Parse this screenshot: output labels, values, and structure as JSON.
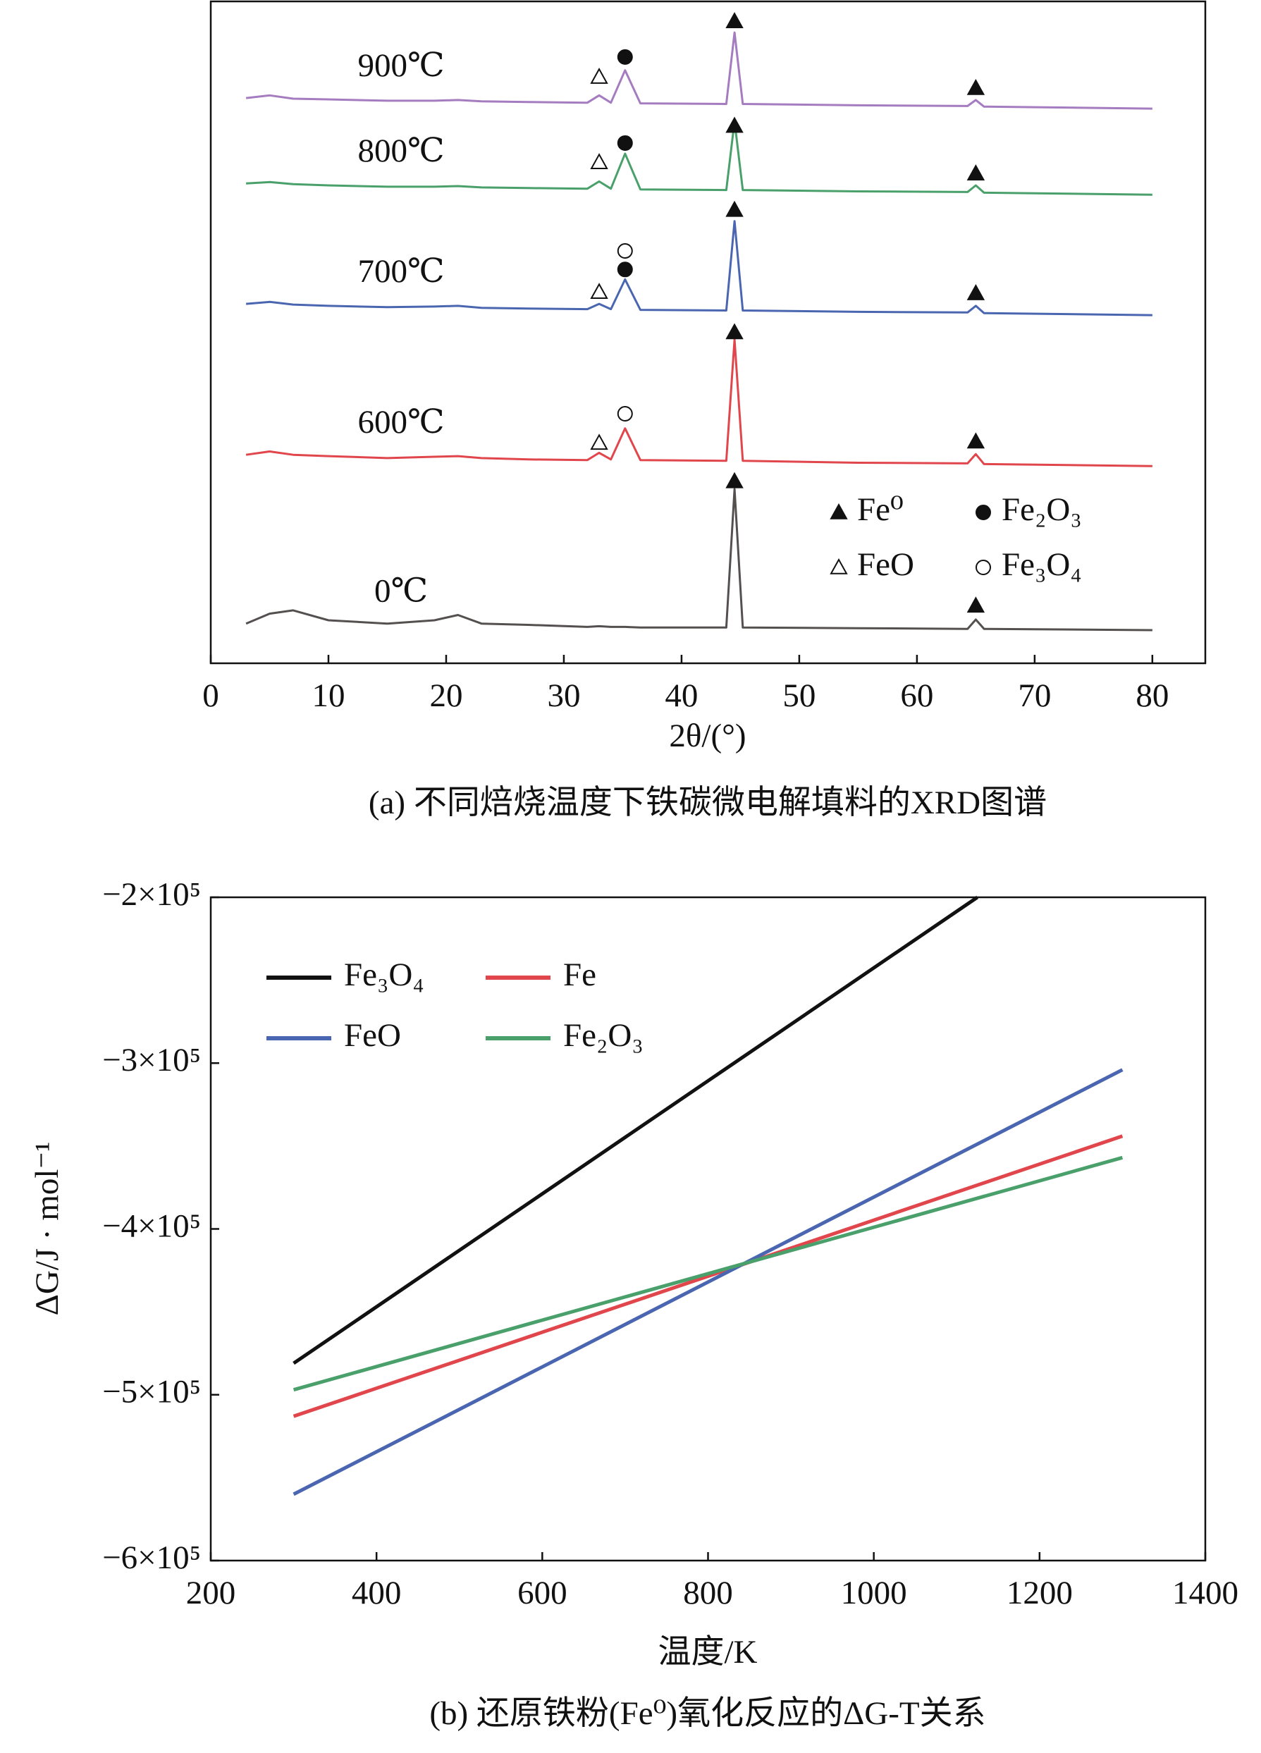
{
  "chart_data": [
    {
      "type": "line",
      "subtitle": "(a) 不同焙烧温度下铁碳微电解填料的XRD图谱",
      "x_label": "2θ/(°)",
      "x": [
        3,
        5,
        7,
        10,
        15,
        19,
        21,
        23,
        27,
        32,
        33,
        34,
        35.2,
        36.5,
        43.8,
        44.5,
        45.2,
        55,
        64.3,
        65,
        65.7,
        80
      ],
      "series": [
        {
          "name": "0℃",
          "color": "#555050",
          "values": [
            6,
            7.5,
            8,
            6.5,
            6,
            6.5,
            7.3,
            6,
            5.8,
            5.5,
            5.6,
            5.5,
            5.5,
            5.4,
            5.4,
            26.3,
            5.4,
            5.3,
            5.2,
            6.6,
            5.2,
            5.0
          ]
        },
        {
          "name": "600℃",
          "color": "#e0464b",
          "values": [
            31.5,
            32,
            31.5,
            31.3,
            31,
            31.2,
            31.3,
            31,
            30.8,
            30.7,
            31.8,
            30.8,
            35.5,
            30.7,
            30.6,
            48.9,
            30.6,
            30.3,
            30.2,
            31.6,
            30.1,
            29.8
          ]
        },
        {
          "name": "700℃",
          "color": "#4a66b0",
          "values": [
            54.3,
            54.6,
            54.2,
            54,
            53.8,
            53.9,
            54,
            53.7,
            53.6,
            53.5,
            54.3,
            53.5,
            58,
            53.4,
            53.3,
            66.8,
            53.3,
            53.1,
            53,
            54,
            52.9,
            52.6
          ]
        },
        {
          "name": "800℃",
          "color": "#4aa06a",
          "values": [
            72.5,
            72.7,
            72.4,
            72.2,
            72,
            72,
            72.1,
            71.9,
            71.8,
            71.7,
            72.8,
            71.7,
            77,
            71.6,
            71.5,
            81.9,
            71.5,
            71.3,
            71.2,
            72.2,
            71.1,
            70.8
          ]
        },
        {
          "name": "900℃",
          "color": "#a57cc0",
          "values": [
            85.4,
            85.8,
            85.3,
            85.2,
            85,
            85,
            85.1,
            84.9,
            84.8,
            84.7,
            85.8,
            84.7,
            89.6,
            84.6,
            84.5,
            95.3,
            84.5,
            84.3,
            84.2,
            85.1,
            84.1,
            83.8
          ]
        }
      ],
      "phases": [
        {
          "name": "Fe⁰",
          "symbol": "filled-triangle",
          "x": [
            44.5,
            44.5,
            44.5,
            44.5,
            44.5,
            65,
            65,
            65,
            65,
            65
          ],
          "y": [
            97,
            81.2,
            68.5,
            50,
            27.5,
            86.9,
            74,
            55.9,
            33.5,
            8.7
          ]
        },
        {
          "name": "FeO",
          "symbol": "open-triangle",
          "x": [
            33,
            33,
            33,
            33
          ],
          "y": [
            88.6,
            75.7,
            56.1,
            33.3
          ]
        },
        {
          "name": "Fe₂O₃",
          "symbol": "filled-circle",
          "x": [
            35.2,
            35.2,
            35.2
          ],
          "y": [
            91.6,
            78.6,
            59.5
          ]
        },
        {
          "name": "Fe₃O₄",
          "symbol": "open-circle",
          "x": [
            35.2,
            35.2
          ],
          "y": [
            62.3,
            37.7
          ]
        }
      ],
      "xlim": [
        0,
        84.5
      ],
      "xticks": [
        0,
        10,
        20,
        30,
        40,
        50,
        60,
        70,
        80
      ],
      "ylim": [
        0,
        100
      ]
    },
    {
      "type": "line",
      "subtitle": "(b) 还原铁粉(Fe⁰)氧化反应的ΔG-T关系",
      "x_label": "温度/K",
      "y_label": "ΔG/J · mol⁻¹",
      "series": [
        {
          "name": "Fe₃O₄",
          "color": "#111111",
          "x": [
            300,
            1125
          ],
          "values": [
            -481000,
            -200000
          ]
        },
        {
          "name": "Fe",
          "color": "#e0464b",
          "x": [
            300,
            1300
          ],
          "values": [
            -513000,
            -344000
          ]
        },
        {
          "name": "FeO",
          "color": "#4a66b0",
          "x": [
            300,
            1300
          ],
          "values": [
            -560000,
            -304000
          ]
        },
        {
          "name": "Fe₂O₃",
          "color": "#4aa06a",
          "x": [
            300,
            1300
          ],
          "values": [
            -497000,
            -357000
          ]
        }
      ],
      "xlim": [
        200,
        1400
      ],
      "xticks": [
        200,
        400,
        600,
        800,
        1000,
        1200,
        1400
      ],
      "ylim": [
        -600000,
        -200000
      ],
      "yticks": [
        {
          "value": -600000,
          "label": "−6×10⁵"
        },
        {
          "value": -500000,
          "label": "−5×10⁵"
        },
        {
          "value": -400000,
          "label": "−4×10⁵"
        },
        {
          "value": -300000,
          "label": "−3×10⁵"
        },
        {
          "value": -200000,
          "label": "−2×10⁵"
        }
      ]
    }
  ]
}
